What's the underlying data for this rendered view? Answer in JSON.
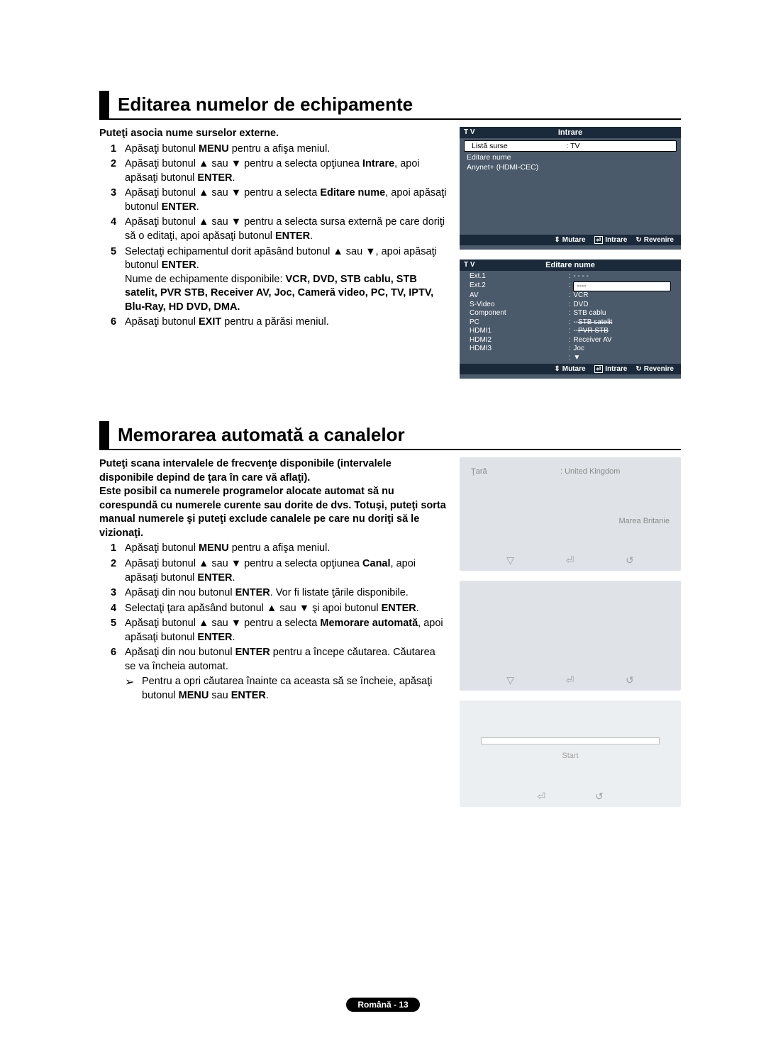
{
  "section1": {
    "title": "Editarea numelor de echipamente",
    "intro": "Puteţi asocia nume surselor externe.",
    "steps": [
      {
        "n": "1",
        "t": "Apăsaţi butonul <b>MENU</b> pentru a afişa meniul."
      },
      {
        "n": "2",
        "t": "Apăsaţi butonul ▲ sau ▼ pentru a selecta opţiunea <b>Intrare</b>, apoi apăsaţi butonul <b>ENTER</b>."
      },
      {
        "n": "3",
        "t": "Apăsaţi butonul ▲ sau ▼ pentru a selecta <b>Editare nume</b>, apoi apăsaţi butonul <b>ENTER</b>."
      },
      {
        "n": "4",
        "t": "Apăsaţi butonul ▲ sau ▼ pentru a selecta sursa externă pe care doriţi să o editaţi, apoi apăsaţi butonul <b>ENTER</b>."
      },
      {
        "n": "5",
        "t": "Selectaţi echipamentul dorit apăsând butonul ▲ sau ▼, apoi apăsaţi butonul <b>ENTER</b>.<br>Nume de echipamente disponibile: <b>VCR, DVD, STB cablu, STB satelit, PVR STB, Receiver AV, Joc, Cameră video, PC, TV, IPTV, Blu-Ray, HD DVD, DMA.</b>"
      },
      {
        "n": "6",
        "t": "Apăsaţi butonul <b>EXIT</b> pentru a părăsi meniul."
      }
    ],
    "screen1": {
      "corner": "T V",
      "title": "Intrare",
      "rows": [
        {
          "left": "Listă surse",
          "right": ": TV",
          "sel": true
        },
        {
          "left": "Editare nume",
          "right": "",
          "sel": false
        },
        {
          "left": "Anynet+ (HDMI-CEC)",
          "right": "",
          "sel": false
        }
      ],
      "footer": {
        "move": "Mutare",
        "enter": "Intrare",
        "return": "Revenire"
      }
    },
    "screen2": {
      "corner": "T V",
      "title": "Editare nume",
      "sources": [
        {
          "src": "Ext.1",
          "dev": "- - - -"
        },
        {
          "src": "Ext.2",
          "dev": "----",
          "sel": true
        },
        {
          "src": "AV",
          "dev": "VCR"
        },
        {
          "src": "S-Video",
          "dev": "DVD"
        },
        {
          "src": "Component",
          "dev": "STB cablu"
        },
        {
          "src": "PC",
          "dev": "STB satelit",
          "strike": true,
          "pre": "--"
        },
        {
          "src": "HDMI1",
          "dev": "PVR STB",
          "strike": true,
          "pre": "--"
        },
        {
          "src": "HDMI2",
          "dev": "Receiver AV"
        },
        {
          "src": "HDMI3",
          "dev": "Joc"
        },
        {
          "src": "",
          "dev": "▼"
        }
      ],
      "footer": {
        "move": "Mutare",
        "enter": "Intrare",
        "return": "Revenire"
      }
    }
  },
  "section2": {
    "title": "Memorarea automată a canalelor",
    "intro": "Puteţi scana intervalele de frecvenţe disponibile (intervalele disponibile depind de ţara în care vă aflaţi).\nEste posibil ca numerele programelor alocate automat să nu corespundă cu numerele curente sau dorite de dvs. Totuşi, puteţi sorta manual numerele şi puteţi exclude canalele pe care nu doriţi să le vizionaţi.",
    "steps": [
      {
        "n": "1",
        "t": "Apăsaţi butonul <b>MENU</b> pentru a afişa meniul."
      },
      {
        "n": "2",
        "t": "Apăsaţi butonul ▲ sau ▼ pentru a selecta opţiunea <b>Canal</b>, apoi apăsaţi butonul <b>ENTER</b>."
      },
      {
        "n": "3",
        "t": "Apăsaţi din nou butonul <b>ENTER</b>. Vor fi listate ţările disponibile."
      },
      {
        "n": "4",
        "t": "Selectaţi ţara apăsând butonul ▲ sau ▼ şi apoi butonul <b>ENTER</b>."
      },
      {
        "n": "5",
        "t": "Apăsaţi butonul ▲ sau ▼ pentru a selecta <b>Memorare automată</b>, apoi apăsaţi butonul <b>ENTER</b>."
      },
      {
        "n": "6",
        "t": "Apăsaţi din nou butonul <b>ENTER</b> pentru a începe căutarea. Căutarea se va încheia automat."
      }
    ],
    "note": "Pentru a opri căutarea înainte ca aceasta să se încheie, apăsaţi butonul <b>MENU</b> sau <b>ENTER</b>.",
    "faded1": {
      "label": "Ţară",
      "value": ": United Kingdom",
      "opt": "Marea Britanie"
    },
    "faded3": {
      "start": "Start"
    }
  },
  "footer": "Română - 13"
}
